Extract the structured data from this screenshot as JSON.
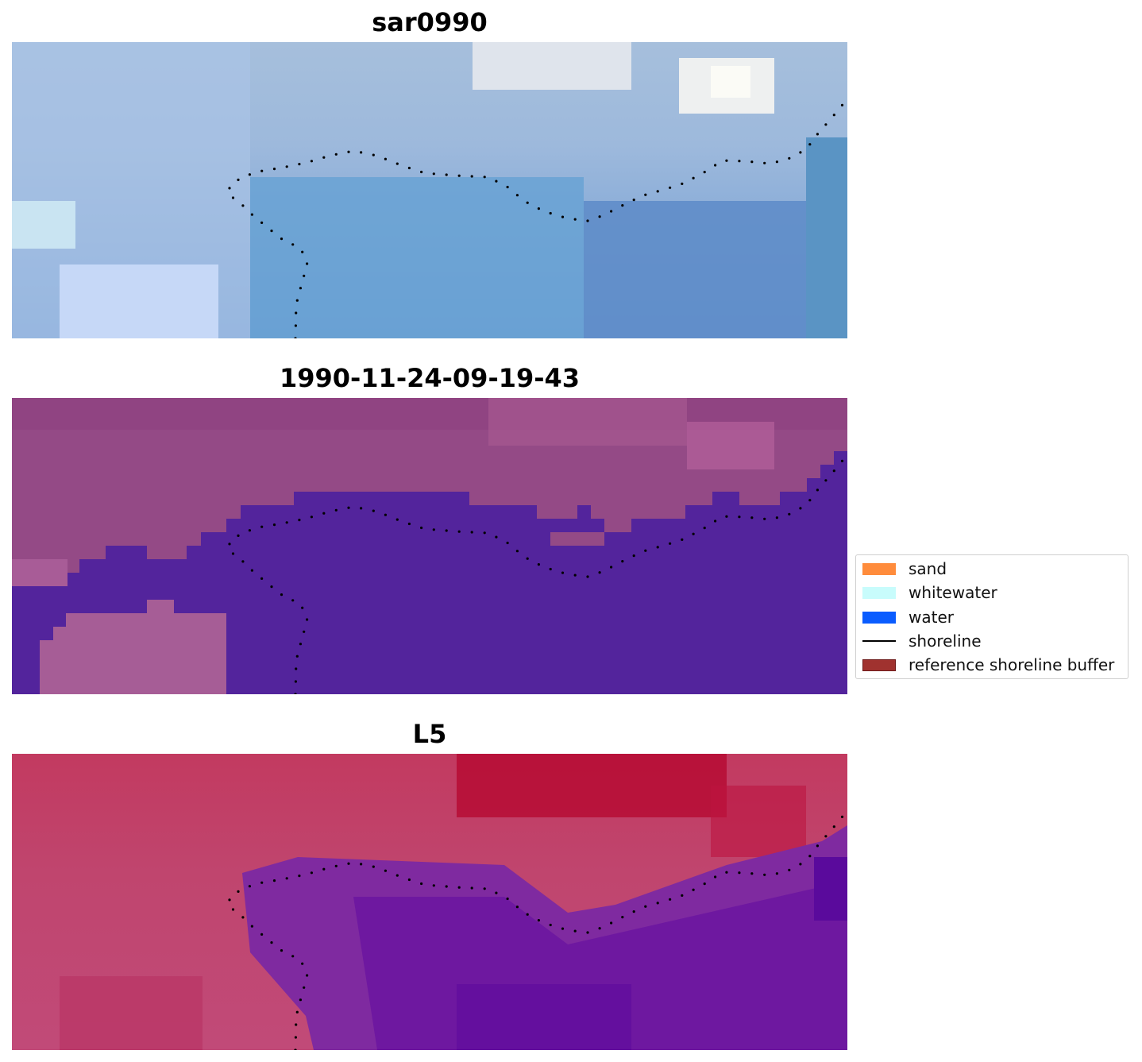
{
  "panels": [
    {
      "title": "sar0990"
    },
    {
      "title": "1990-11-24-09-19-43"
    },
    {
      "title": "L5"
    }
  ],
  "legend": {
    "items": [
      {
        "label": "sand",
        "kind": "patch",
        "color": "#ff8c3c"
      },
      {
        "label": "whitewater",
        "kind": "patch",
        "color": "#c8fcfc"
      },
      {
        "label": "water",
        "kind": "patch",
        "color": "#0a5cff"
      },
      {
        "label": "shoreline",
        "kind": "line",
        "color": "#000000"
      },
      {
        "label": "reference shoreline buffer",
        "kind": "patch",
        "color": "#a0322f"
      }
    ]
  },
  "colors": {
    "rgb_sky": "#a8c4e0",
    "rgb_water": "#5b8ec8",
    "class_land": "#944a86",
    "class_water": "#53249c",
    "mndwi_land": "#c33a66",
    "mndwi_water": "#6e1fa0"
  }
}
